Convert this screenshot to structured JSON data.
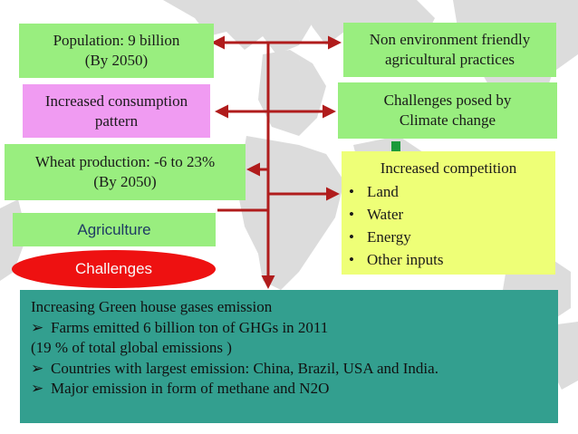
{
  "boxes": {
    "population": {
      "line1": "Population: 9 billion",
      "line2": "(By 2050)"
    },
    "consumption": {
      "line1": "Increased consumption",
      "line2": "pattern"
    },
    "wheat": {
      "line1": "Wheat production: -6 to 23%",
      "line2": "(By 2050)"
    },
    "agriculture": "Agriculture",
    "challenges": "Challenges",
    "non_env": {
      "line1": "Non environment friendly",
      "line2": "agricultural practices"
    },
    "climate": {
      "line1": "Challenges posed by",
      "line2": "Climate change"
    },
    "competition": {
      "title": "Increased competition",
      "items": [
        "Land",
        "Water",
        "Energy",
        "Other inputs"
      ]
    },
    "emissions": {
      "title": "Increasing Green house gases emission",
      "point1": "Farms emitted 6 billion ton of GHGs in 2011",
      "note": "(19 % of total global emissions )",
      "point2": "Countries with largest emission: China, Brazil, USA and India.",
      "point3": "Major emission in form of methane and N2O"
    }
  },
  "colors": {
    "green": "#99ee7f",
    "pink": "#f09bf2",
    "yellow": "#eeff77",
    "teal": "#339f8f",
    "red_oval": "#ee1111",
    "arrow": "#b01c1c"
  }
}
